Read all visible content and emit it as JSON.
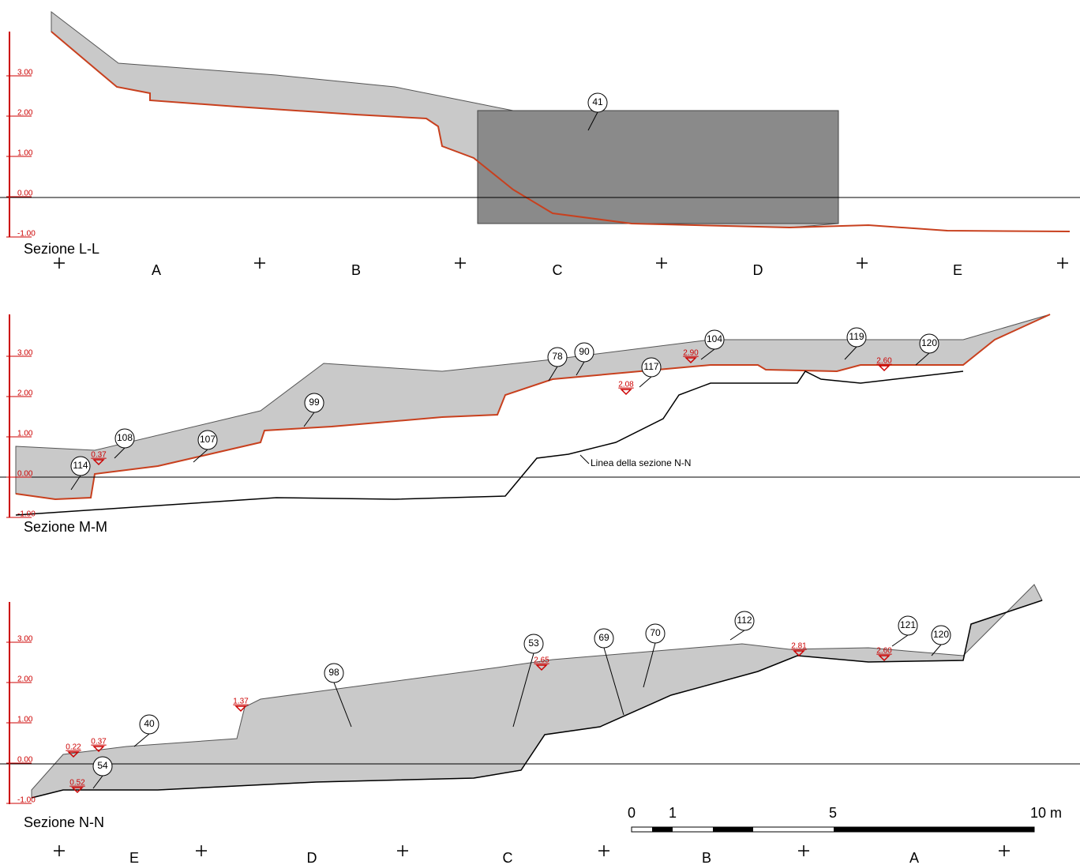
{
  "sections": [
    {
      "title": "Sezione L-L",
      "scale": [
        "3.00",
        "2.00",
        "1.00",
        "0.00",
        "-1.00"
      ],
      "callouts": [
        "41"
      ],
      "elevations": [],
      "grid": [
        "A",
        "B",
        "C",
        "D",
        "E"
      ]
    },
    {
      "title": "Sezione M-M",
      "scale": [
        "3.00",
        "2.00",
        "1.00",
        "0.00",
        "-1.00"
      ],
      "callouts": [
        "78",
        "90",
        "104",
        "117",
        "119",
        "120",
        "99",
        "108",
        "107",
        "114"
      ],
      "elevations": [
        "2.90",
        "2.08",
        "2.60",
        "0.37"
      ],
      "note": "Linea della sezione N-N",
      "grid": []
    },
    {
      "title": "Sezione N-N",
      "scale": [
        "3.00",
        "2.00",
        "1.00",
        "0.00",
        "-1.00"
      ],
      "callouts": [
        "98",
        "53",
        "69",
        "70",
        "112",
        "121",
        "120",
        "40",
        "54"
      ],
      "elevations": [
        "2.65",
        "1.37",
        "2.81",
        "2.60",
        "0.22",
        "0.37",
        "0.52"
      ],
      "grid": [
        "E",
        "D",
        "C",
        "B",
        "A"
      ]
    }
  ],
  "scale_bar": {
    "labels": [
      "0",
      "1",
      "5",
      "10 m"
    ]
  }
}
